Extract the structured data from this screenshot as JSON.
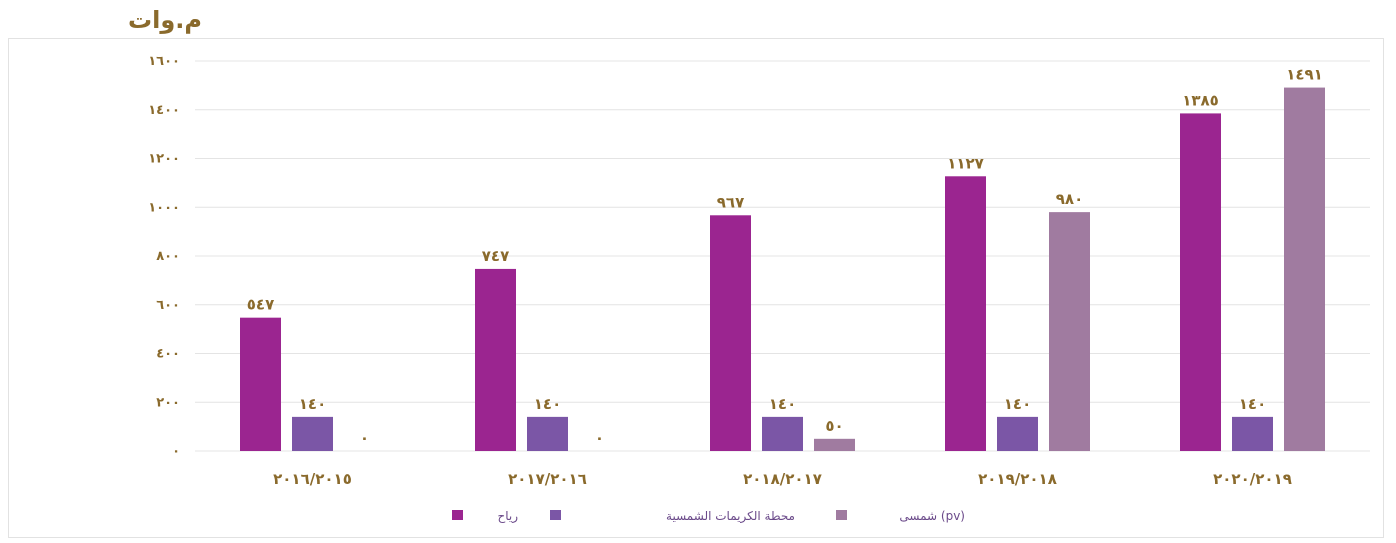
{
  "chart_data": {
    "type": "bar",
    "unit_label": "م.وات",
    "ylim": [
      0,
      1600
    ],
    "yticks": [
      "٠",
      "٢٠٠",
      "٤٠٠",
      "٦٠٠",
      "٨٠٠",
      "١٠٠٠",
      "١٢٠٠",
      "١٤٠٠",
      "١٦٠٠"
    ],
    "ytick_values": [
      0,
      200,
      400,
      600,
      800,
      1000,
      1200,
      1400,
      1600
    ],
    "categories": [
      "٢٠١٦/٢٠١٥",
      "٢٠١٧/٢٠١٦",
      "٢٠١٨/٢٠١٧",
      "٢٠١٩/٢٠١٨",
      "٢٠٢٠/٢٠١٩"
    ],
    "grid": true,
    "legend_position": "bottom",
    "series": [
      {
        "name": "رياح",
        "color": "#9b2590",
        "values": [
          547,
          747,
          967,
          1127,
          1385
        ],
        "labels": [
          "٥٤٧",
          "٧٤٧",
          "٩٦٧",
          "١١٢٧",
          "١٣٨٥"
        ]
      },
      {
        "name": "محطة الكريمات الشمسية",
        "color": "#7b56a6",
        "values": [
          140,
          140,
          140,
          140,
          140
        ],
        "labels": [
          "١٤٠",
          "١٤٠",
          "١٤٠",
          "١٤٠",
          "١٤٠"
        ]
      },
      {
        "name": "شمسى (pv)",
        "color": "#a07ba0",
        "values": [
          0,
          0,
          50,
          980,
          1491
        ],
        "labels": [
          "٠",
          "٠",
          "٥٠",
          "٩٨٠",
          "١٤٩١"
        ]
      }
    ]
  }
}
